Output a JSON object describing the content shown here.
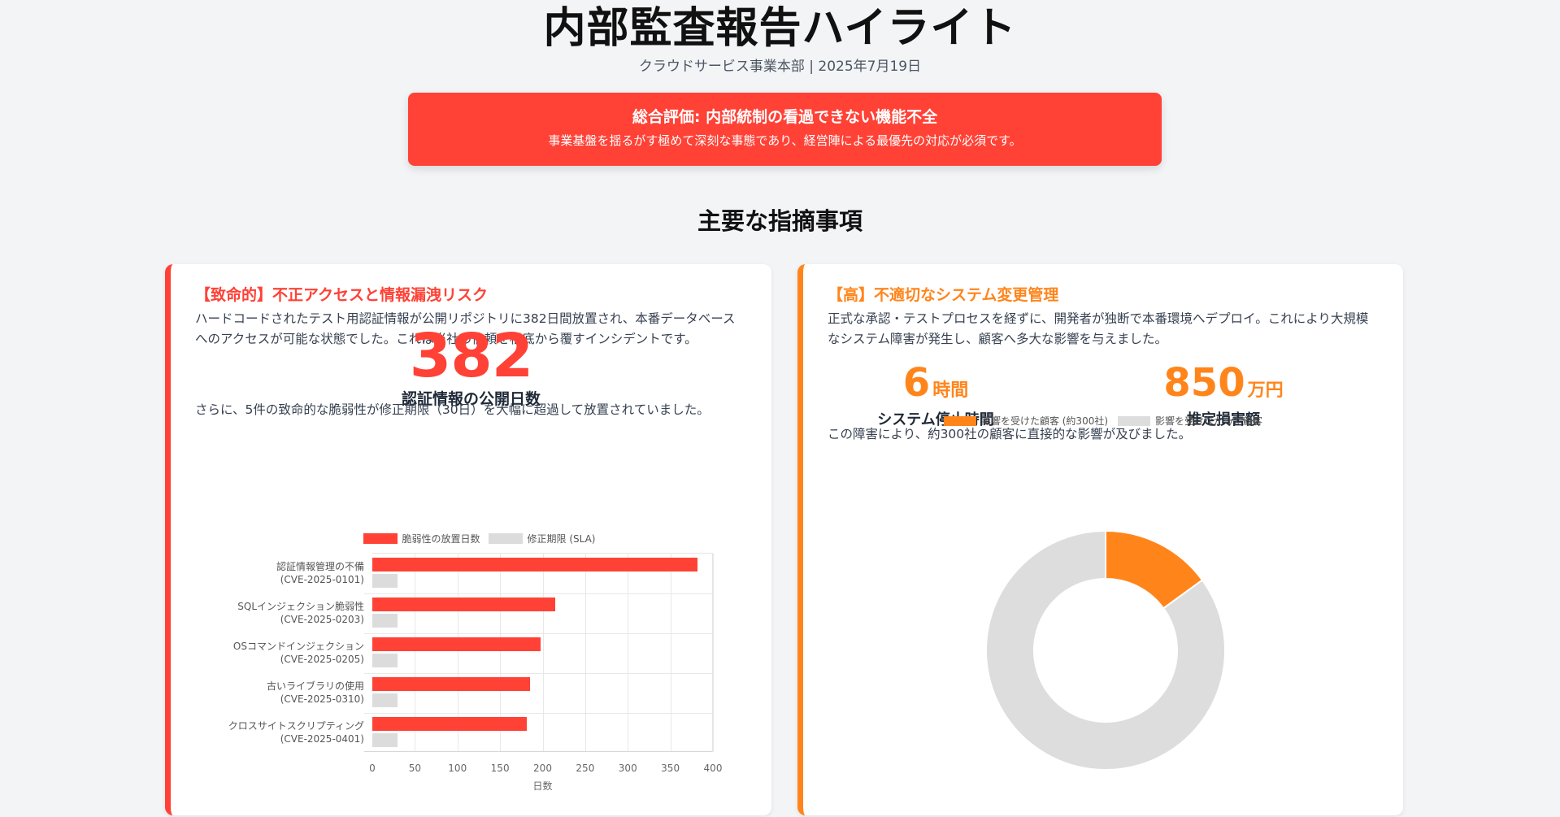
{
  "header": {
    "title": "内部監査報告ハイライト",
    "subtitle": "クラウドサービス事業本部 | 2025年7月19日"
  },
  "banner": {
    "title": "総合評価: 内部統制の看過できない機能不全",
    "text": "事業基盤を揺るがす極めて深刻な事態であり、経営陣による最優先の対応が必須です。",
    "color": "#FF4136"
  },
  "section": {
    "title": "主要な指摘事項"
  },
  "findings": [
    {
      "severity": "critical",
      "title": "【致命的】不正アクセスと情報漏洩リスク",
      "description": "ハードコードされたテスト用認証情報が公開リポジトリに382日間放置され、本番データベースへのアクセスが可能な状態でした。これは当社の信頼を根底から覆すインシデントです。",
      "stat_value": "382",
      "stat_label": "認証情報の公開日数",
      "note": "さらに、5件の致命的な脆弱性が修正期限（30日）を大幅に超過して放置されていました。",
      "accent": "#FF4136"
    },
    {
      "severity": "high",
      "title": "【高】不適切なシステム変更管理",
      "description": "正式な承認・テストプロセスを経ずに、開発者が独断で本番環境へデプロイ。これにより大規模なシステム障害が発生し、顧客へ多大な影響を与えました。",
      "metrics": [
        {
          "value": "6",
          "unit": "時間",
          "label": "システム停止時間"
        },
        {
          "value": "850",
          "unit": "万円",
          "label": "推定損害額"
        }
      ],
      "note": "この障害により、約300社の顧客に直接的な影響が及びました。",
      "accent": "#FF851B"
    }
  ],
  "chart_data": [
    {
      "type": "bar",
      "orientation": "horizontal",
      "categories": [
        [
          "認証情報管理の不備",
          "(CVE-2025-0101)"
        ],
        [
          "SQLインジェクション脆弱性",
          "(CVE-2025-0203)"
        ],
        [
          "OSコマンドインジェクション",
          "(CVE-2025-0205)"
        ],
        [
          "古いライブラリの使用",
          "(CVE-2025-0310)"
        ],
        [
          "クロスサイトスクリプティング",
          "(CVE-2025-0401)"
        ]
      ],
      "series": [
        {
          "name": "脆弱性の放置日数",
          "values": [
            382,
            215,
            198,
            185,
            181
          ],
          "color": "#FF4136"
        },
        {
          "name": "修正期限 (SLA)",
          "values": [
            30,
            30,
            30,
            30,
            30
          ],
          "color": "#DCDCDC"
        }
      ],
      "xlabel": "日数",
      "ylabel": "",
      "xlim": [
        0,
        400
      ],
      "xticks": [
        0,
        50,
        100,
        150,
        200,
        250,
        300,
        350,
        400
      ],
      "grid": true,
      "legend_position": "top"
    },
    {
      "type": "pie",
      "variant": "doughnut",
      "categories": [
        "影響を受けた顧客 (約300社)",
        "影響を受けなかった顧客"
      ],
      "values": [
        300,
        1700
      ],
      "colors": [
        "#FF851B",
        "#DDDDDD"
      ],
      "legend_position": "top"
    }
  ]
}
